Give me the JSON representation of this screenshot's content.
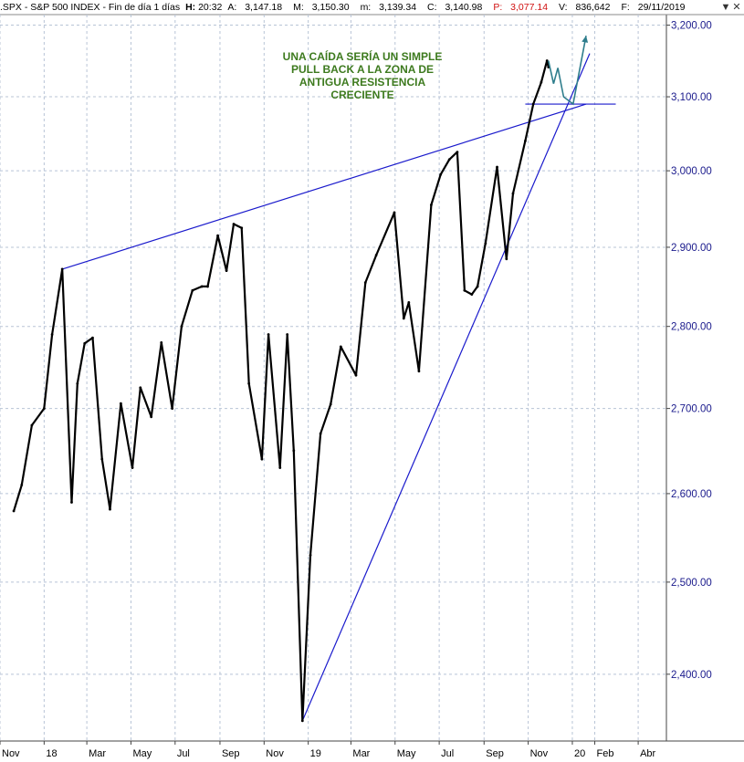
{
  "header": {
    "symbol": ".SPX - S&P 500 INDEX - Fin de día 1 días",
    "h_label": "H:",
    "h_value": "20:32",
    "a_label": "A:",
    "a_value": "3,147.18",
    "m_label": "M:",
    "m_value": "3,150.30",
    "min_label": "m:",
    "min_value": "3,139.34",
    "c_label": "C:",
    "c_value": "3,140.98",
    "p_label": "P:",
    "p_value": "3,077.14",
    "v_label": "V:",
    "v_value": "836,642",
    "f_label": "F:",
    "f_value": "29/11/2019"
  },
  "window_controls": [
    "▼",
    "✕"
  ],
  "colors": {
    "price": "#000000",
    "trendline": "#1a1acc",
    "axis_text": "#1a1a8c",
    "annotation": "#3d7a1e",
    "projection": "#2e7d8c",
    "grid": "#b8c4d6"
  },
  "chart_data": {
    "type": "line",
    "title": "",
    "xlabel": "",
    "ylabel": "",
    "ylim": [
      2330,
      3215
    ],
    "y_scale": "log",
    "grid": true,
    "y_ticks": [
      "3,200.00",
      "3,100.00",
      "3,000.00",
      "2,900.00",
      "2,800.00",
      "2,700.00",
      "2,600.00",
      "2,500.00",
      "2,400.00"
    ],
    "y_tick_values": [
      3200,
      3100,
      3000,
      2900,
      2800,
      2700,
      2600,
      2500,
      2400
    ],
    "x_ticks": [
      "Nov",
      "18",
      "Mar",
      "May",
      "Jul",
      "Sep",
      "Nov",
      "19",
      "Mar",
      "May",
      "Jul",
      "Sep",
      "Nov",
      "20",
      "Feb",
      "Abr"
    ],
    "x_tick_dates": [
      "2017-11-01",
      "2018-01-01",
      "2018-03-01",
      "2018-05-01",
      "2018-07-01",
      "2018-09-01",
      "2018-11-01",
      "2019-01-01",
      "2019-03-01",
      "2019-05-01",
      "2019-07-01",
      "2019-09-01",
      "2019-11-01",
      "2020-01-01",
      "2020-02-01",
      "2020-04-01"
    ],
    "x_range": [
      "2017-11-01",
      "2020-05-10"
    ],
    "series": [
      {
        "x": [
          "2017-11-20",
          "2017-12-01",
          "2017-12-15",
          "2018-01-01",
          "2018-01-12",
          "2018-01-26",
          "2018-02-08",
          "2018-02-16",
          "2018-02-26",
          "2018-03-09",
          "2018-03-22",
          "2018-04-02",
          "2018-04-17",
          "2018-05-03",
          "2018-05-14",
          "2018-05-29",
          "2018-06-12",
          "2018-06-27",
          "2018-07-10",
          "2018-07-25",
          "2018-08-07",
          "2018-08-15",
          "2018-08-29",
          "2018-09-10",
          "2018-09-20",
          "2018-10-01",
          "2018-10-11",
          "2018-10-29",
          "2018-11-07",
          "2018-11-23",
          "2018-12-03",
          "2018-12-12",
          "2018-12-24",
          "2019-01-04",
          "2019-01-18",
          "2019-02-01",
          "2019-02-15",
          "2019-03-08",
          "2019-03-21",
          "2019-04-05",
          "2019-04-30",
          "2019-05-13",
          "2019-05-20",
          "2019-06-03",
          "2019-06-20",
          "2019-07-03",
          "2019-07-15",
          "2019-07-26",
          "2019-08-05",
          "2019-08-15",
          "2019-08-23",
          "2019-09-03",
          "2019-09-19",
          "2019-10-02",
          "2019-10-11",
          "2019-10-28",
          "2019-11-08",
          "2019-11-19",
          "2019-11-27",
          "2019-11-29"
        ],
        "values": [
          2580,
          2610,
          2680,
          2700,
          2790,
          2872,
          2590,
          2730,
          2779,
          2786,
          2640,
          2582,
          2706,
          2630,
          2725,
          2690,
          2780,
          2700,
          2800,
          2845,
          2850,
          2850,
          2915,
          2870,
          2930,
          2925,
          2730,
          2640,
          2790,
          2630,
          2790,
          2650,
          2351,
          2530,
          2670,
          2705,
          2775,
          2740,
          2855,
          2890,
          2945,
          2810,
          2830,
          2745,
          2955,
          2995,
          3015,
          3025,
          2845,
          2840,
          2850,
          2905,
          3005,
          2885,
          2970,
          3040,
          3090,
          3120,
          3150,
          3141
        ]
      },
      {
        "name": "",
        "x": [
          "2019-11-29",
          "2019-12-06",
          "2019-12-12",
          "2019-12-20",
          "2020-01-02",
          "2020-01-20"
        ],
        "values": [
          3150,
          3118,
          3140,
          3100,
          3090,
          3185
        ]
      }
    ],
    "trendlines": [
      {
        "x": [
          "2018-01-26",
          "2020-01-20"
        ],
        "values": [
          2872,
          3090
        ]
      },
      {
        "x": [
          "2018-12-24",
          "2020-01-25"
        ],
        "values": [
          2351,
          3160
        ]
      },
      {
        "x": [
          "2019-10-28",
          "2020-03-01"
        ],
        "values": [
          3090,
          3090
        ]
      }
    ],
    "annotations": [
      "UNA CAÍDA SERÍA UN SIMPLE",
      "PULL BACK A LA ZONA DE",
      "ANTIGUA RESISTENCIA",
      "CRECIENTE"
    ]
  }
}
